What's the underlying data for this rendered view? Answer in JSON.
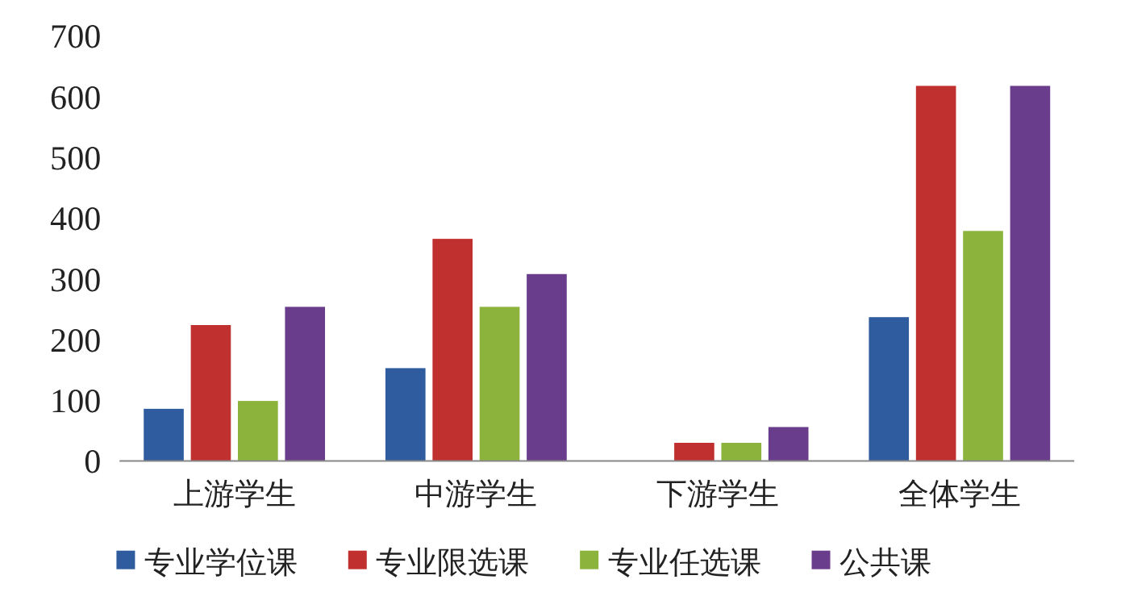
{
  "chart_data": {
    "type": "bar",
    "categories": [
      "上游学生",
      "中游学生",
      "下游学生",
      "全体学生"
    ],
    "series": [
      {
        "name": "专业学位课",
        "color": "#2e5c9e",
        "values": [
          86,
          153,
          0,
          237
        ]
      },
      {
        "name": "专业限选课",
        "color": "#c0302e",
        "values": [
          224,
          366,
          30,
          618
        ]
      },
      {
        "name": "专业任选课",
        "color": "#8cb43c",
        "values": [
          99,
          254,
          30,
          379
        ]
      },
      {
        "name": "公共课",
        "color": "#6a3c8c",
        "values": [
          254,
          308,
          56,
          618
        ]
      }
    ],
    "ylim": [
      0,
      700
    ],
    "yticks": [
      0,
      100,
      200,
      300,
      400,
      500,
      600,
      700
    ],
    "grid": false,
    "legend": "bottom"
  }
}
